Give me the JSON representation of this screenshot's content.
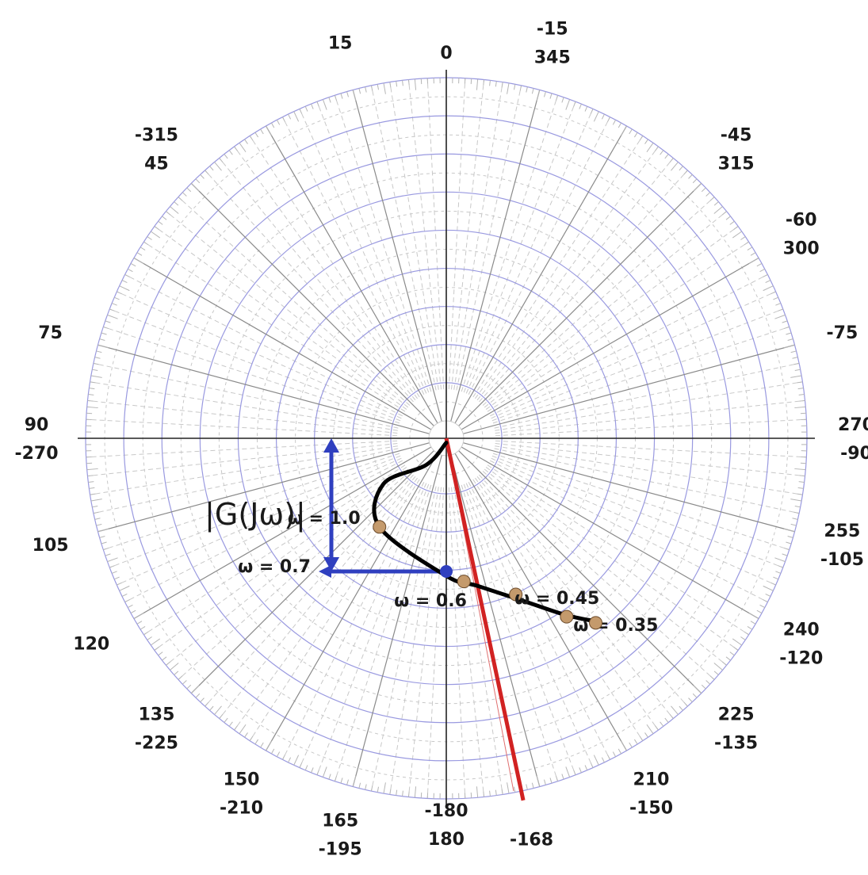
{
  "chart_data": {
    "type": "polar",
    "title": "",
    "angle_labels": [
      {
        "deg": 0,
        "lines": [
          "0"
        ]
      },
      {
        "deg": 15,
        "lines": [
          "15"
        ]
      },
      {
        "deg": 345,
        "lines": [
          "-15",
          "345"
        ]
      },
      {
        "deg": 45,
        "lines": [
          "-315",
          "45"
        ]
      },
      {
        "deg": 315,
        "lines": [
          "-45",
          "315"
        ]
      },
      {
        "deg": 300,
        "lines": [
          "-60",
          "300"
        ]
      },
      {
        "deg": 75,
        "lines": [
          "75"
        ]
      },
      {
        "deg": 285,
        "lines": [
          "-75"
        ]
      },
      {
        "deg": 90,
        "lines": [
          "90",
          "-270"
        ]
      },
      {
        "deg": 270,
        "lines": [
          "270",
          "-90"
        ]
      },
      {
        "deg": 105,
        "lines": [
          "105"
        ]
      },
      {
        "deg": 255,
        "lines": [
          "255",
          "-105"
        ]
      },
      {
        "deg": 120,
        "lines": [
          "120"
        ]
      },
      {
        "deg": 240,
        "lines": [
          "240",
          "-120"
        ]
      },
      {
        "deg": 135,
        "lines": [
          "135",
          "-225"
        ]
      },
      {
        "deg": 225,
        "lines": [
          "225",
          "-135"
        ]
      },
      {
        "deg": 150,
        "lines": [
          "150",
          "-210"
        ]
      },
      {
        "deg": 210,
        "lines": [
          "210",
          "-150"
        ]
      },
      {
        "deg": 165,
        "lines": [
          "165",
          "-195"
        ]
      },
      {
        "deg": 180,
        "lines": [
          "-180",
          "180"
        ]
      },
      {
        "deg": 192,
        "lines": [
          "-168"
        ]
      }
    ],
    "rings": 9,
    "spoke_step_deg": 15,
    "locus": {
      "color": "#000000",
      "points": [
        {
          "mag": 0.02,
          "ang": 180
        },
        {
          "mag": 0.15,
          "ang": 143
        },
        {
          "mag": 0.35,
          "ang": 126
        },
        {
          "mag": 0.5,
          "ang": 143
        },
        {
          "mag": 0.62,
          "ang": 180
        },
        {
          "mag": 0.68,
          "ang": 192
        },
        {
          "mag": 0.82,
          "ang": 206
        },
        {
          "mag": 0.96,
          "ang": 214
        },
        {
          "mag": 1.06,
          "ang": 219
        }
      ]
    },
    "markers": [
      {
        "label": "ω = 0.6",
        "mag": 0.6,
        "ang": 180,
        "color": "#2f3fbf"
      },
      {
        "label": "ω = 1.0",
        "mag": 0.5,
        "ang": 143,
        "color": "#c49a6c"
      },
      {
        "label": "ω = 0.45",
        "mag": 0.77,
        "ang": 204,
        "color": "#c49a6c"
      },
      {
        "label": "ω = 0.35",
        "mag": 0.97,
        "ang": 214,
        "color": "#c49a6c"
      },
      {
        "mag": 1.07,
        "ang": 219,
        "color": "#c49a6c"
      },
      {
        "mag": 0.65,
        "ang": 187,
        "color": "#c49a6c"
      }
    ],
    "phase_line": {
      "angle": 192,
      "color": "#d12222"
    },
    "magnitude_annotation": {
      "text": "|G(Jω)|",
      "point_label": "ω = 0.7",
      "color": "#2f3fbf"
    }
  },
  "colors": {
    "ring": "#9999e0",
    "spoke": "#8a8a8a",
    "axis": "#222222",
    "fine_grid": "#c8c8c8"
  }
}
